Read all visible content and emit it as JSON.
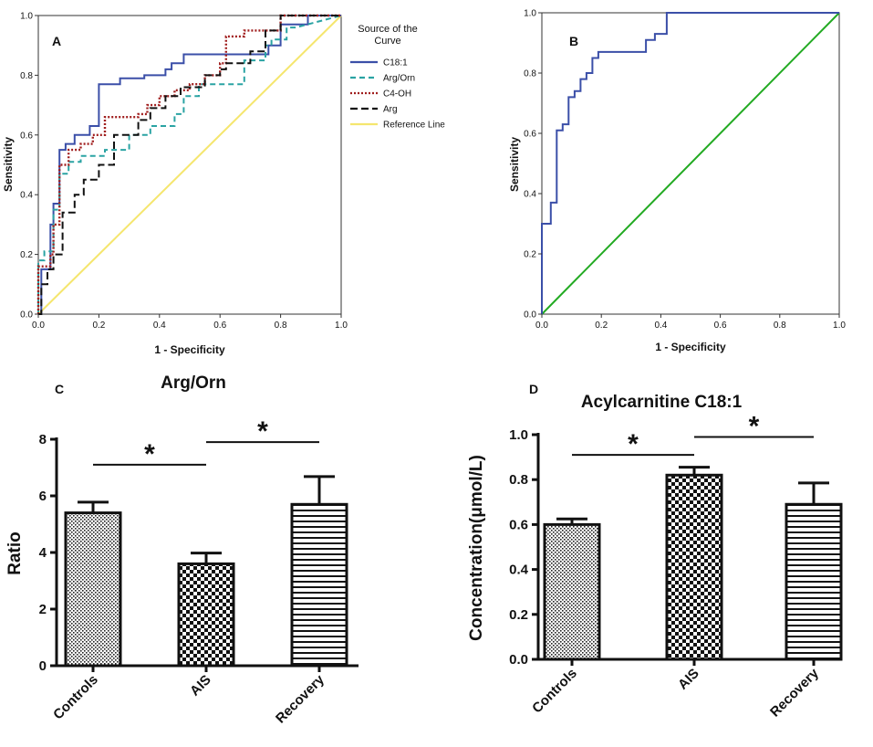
{
  "chart_data": [
    {
      "panel": "A",
      "type": "line",
      "xlabel": "1 - Specificity",
      "ylabel": "Sensitivity",
      "xlim": [
        0,
        1
      ],
      "ylim": [
        0,
        1
      ],
      "xticks": [
        "0.0",
        "0.2",
        "0.4",
        "0.6",
        "0.8",
        "1.0"
      ],
      "yticks": [
        "0.0",
        "0.2",
        "0.4",
        "0.6",
        "0.8",
        "1.0"
      ],
      "legend_title_line1": "Source of the",
      "legend_title_line2": "Curve",
      "legend_position": "right",
      "series": [
        {
          "name": "C18:1",
          "color": "#3b4fa8",
          "dash": "",
          "x": [
            0,
            0.01,
            0.01,
            0.04,
            0.04,
            0.05,
            0.05,
            0.07,
            0.07,
            0.09,
            0.09,
            0.12,
            0.12,
            0.17,
            0.17,
            0.2,
            0.2,
            0.27,
            0.27,
            0.35,
            0.35,
            0.42,
            0.42,
            0.44,
            0.44,
            0.48,
            0.48,
            0.58,
            0.58,
            0.73,
            0.73,
            0.76,
            0.76,
            0.8,
            0.8,
            0.89,
            0.89,
            1.0
          ],
          "y": [
            0,
            0,
            0.15,
            0.15,
            0.3,
            0.3,
            0.37,
            0.37,
            0.55,
            0.55,
            0.57,
            0.57,
            0.6,
            0.6,
            0.63,
            0.63,
            0.77,
            0.77,
            0.79,
            0.79,
            0.8,
            0.8,
            0.82,
            0.82,
            0.84,
            0.84,
            0.87,
            0.87,
            0.87,
            0.87,
            0.87,
            0.87,
            0.9,
            0.9,
            0.97,
            0.97,
            1.0,
            1.0
          ]
        },
        {
          "name": "Arg/Orn",
          "color": "#2aa3a3",
          "dash": "6,4",
          "x": [
            0,
            0,
            0.02,
            0.02,
            0.05,
            0.05,
            0.07,
            0.07,
            0.1,
            0.1,
            0.14,
            0.14,
            0.22,
            0.22,
            0.3,
            0.3,
            0.37,
            0.37,
            0.45,
            0.45,
            0.48,
            0.48,
            0.53,
            0.53,
            0.68,
            0.68,
            0.75,
            0.75,
            0.77,
            0.77,
            0.82,
            0.82,
            0.85,
            1.0
          ],
          "y": [
            0,
            0.18,
            0.18,
            0.21,
            0.21,
            0.35,
            0.35,
            0.47,
            0.47,
            0.51,
            0.51,
            0.53,
            0.53,
            0.55,
            0.55,
            0.6,
            0.6,
            0.63,
            0.63,
            0.67,
            0.67,
            0.73,
            0.73,
            0.77,
            0.77,
            0.85,
            0.85,
            0.9,
            0.9,
            0.92,
            0.92,
            0.96,
            0.96,
            1.0
          ]
        },
        {
          "name": "C4-OH",
          "color": "#a01e1e",
          "dash": "2,2",
          "x": [
            0,
            0,
            0.04,
            0.04,
            0.05,
            0.05,
            0.07,
            0.07,
            0.1,
            0.1,
            0.14,
            0.14,
            0.18,
            0.18,
            0.22,
            0.22,
            0.33,
            0.33,
            0.36,
            0.36,
            0.4,
            0.4,
            0.45,
            0.45,
            0.5,
            0.5,
            0.55,
            0.55,
            0.6,
            0.6,
            0.62,
            0.62,
            0.68,
            0.68,
            0.8,
            0.8,
            1.0
          ],
          "y": [
            0,
            0.16,
            0.16,
            0.2,
            0.2,
            0.3,
            0.3,
            0.5,
            0.5,
            0.55,
            0.55,
            0.57,
            0.57,
            0.6,
            0.6,
            0.66,
            0.66,
            0.67,
            0.67,
            0.7,
            0.7,
            0.73,
            0.73,
            0.75,
            0.75,
            0.77,
            0.77,
            0.8,
            0.8,
            0.84,
            0.84,
            0.93,
            0.93,
            0.95,
            0.95,
            1.0,
            1.0
          ]
        },
        {
          "name": "Arg",
          "color": "#111111",
          "dash": "8,4",
          "x": [
            0,
            0.01,
            0.01,
            0.03,
            0.03,
            0.05,
            0.05,
            0.08,
            0.08,
            0.12,
            0.12,
            0.15,
            0.15,
            0.2,
            0.2,
            0.25,
            0.25,
            0.33,
            0.33,
            0.37,
            0.37,
            0.42,
            0.42,
            0.47,
            0.47,
            0.55,
            0.55,
            0.6,
            0.6,
            0.62,
            0.62,
            0.7,
            0.7,
            0.75,
            0.75,
            0.8,
            0.8,
            1.0
          ],
          "y": [
            0,
            0,
            0.1,
            0.1,
            0.15,
            0.15,
            0.2,
            0.2,
            0.34,
            0.34,
            0.4,
            0.4,
            0.45,
            0.45,
            0.5,
            0.5,
            0.6,
            0.6,
            0.65,
            0.65,
            0.69,
            0.69,
            0.73,
            0.73,
            0.76,
            0.76,
            0.8,
            0.8,
            0.82,
            0.82,
            0.84,
            0.84,
            0.88,
            0.88,
            0.95,
            0.95,
            1.0,
            1.0
          ]
        },
        {
          "name": "Reference Line",
          "color": "#f5e66e",
          "dash": "",
          "x": [
            0,
            1
          ],
          "y": [
            0,
            1
          ]
        }
      ]
    },
    {
      "panel": "B",
      "type": "line",
      "xlabel": "1 - Specificity",
      "ylabel": "Sensitivity",
      "xlim": [
        0,
        1
      ],
      "ylim": [
        0,
        1
      ],
      "xticks": [
        "0.0",
        "0.2",
        "0.4",
        "0.6",
        "0.8",
        "1.0"
      ],
      "yticks": [
        "0.0",
        "0.2",
        "0.4",
        "0.6",
        "0.8",
        "1.0"
      ],
      "series": [
        {
          "name": "C18:1",
          "color": "#3b4fa8",
          "dash": "",
          "x": [
            0,
            0,
            0.03,
            0.03,
            0.05,
            0.05,
            0.07,
            0.07,
            0.09,
            0.09,
            0.11,
            0.11,
            0.13,
            0.13,
            0.15,
            0.15,
            0.17,
            0.17,
            0.19,
            0.19,
            0.35,
            0.35,
            0.38,
            0.38,
            0.42,
            0.42,
            0.5,
            0.5,
            1.0
          ],
          "y": [
            0,
            0.3,
            0.3,
            0.37,
            0.37,
            0.61,
            0.61,
            0.63,
            0.63,
            0.72,
            0.72,
            0.74,
            0.74,
            0.78,
            0.78,
            0.8,
            0.8,
            0.85,
            0.85,
            0.87,
            0.87,
            0.91,
            0.91,
            0.93,
            0.93,
            1.0,
            1.0,
            1.0,
            1.0
          ]
        },
        {
          "name": "Reference",
          "color": "#22aa22",
          "dash": "",
          "x": [
            0,
            1
          ],
          "y": [
            0,
            1
          ]
        }
      ]
    },
    {
      "panel": "C",
      "type": "bar",
      "title": "Arg/Orn",
      "ylabel": "Ratio",
      "ylim": [
        0,
        8
      ],
      "yticks": [
        "0",
        "2",
        "4",
        "6",
        "8"
      ],
      "categories": [
        "Controls",
        "AIS",
        "Recovery"
      ],
      "values": [
        5.4,
        3.6,
        5.7
      ],
      "errors": [
        0.38,
        0.38,
        0.98
      ],
      "patterns": [
        "dots",
        "checker",
        "hlines"
      ],
      "significance": [
        {
          "from": 0,
          "to": 1,
          "level": 7.1,
          "label": "*"
        },
        {
          "from": 1,
          "to": 2,
          "level": 7.9,
          "label": "*"
        }
      ]
    },
    {
      "panel": "D",
      "type": "bar",
      "title": "Acylcarnitine C18:1",
      "ylabel": "Concentration(μmol/L)",
      "ylim": [
        0,
        1.0
      ],
      "yticks": [
        "0.0",
        "0.2",
        "0.4",
        "0.6",
        "0.8",
        "1.0"
      ],
      "categories": [
        "Controls",
        "AIS",
        "Recovery"
      ],
      "values": [
        0.6,
        0.82,
        0.69
      ],
      "errors": [
        0.025,
        0.035,
        0.095
      ],
      "patterns": [
        "dots",
        "checker",
        "hlines"
      ],
      "significance": [
        {
          "from": 0,
          "to": 1,
          "level": 0.91,
          "label": "*"
        },
        {
          "from": 1,
          "to": 2,
          "level": 0.99,
          "label": "*"
        }
      ]
    }
  ]
}
